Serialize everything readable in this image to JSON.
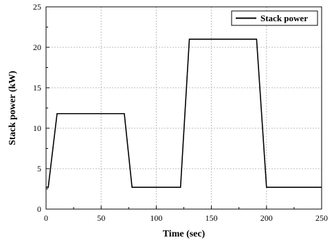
{
  "chart_data": {
    "type": "line",
    "title": "",
    "xlabel": "Time (sec)",
    "ylabel": "Stack power (kW)",
    "xlim": [
      0,
      250
    ],
    "ylim": [
      0,
      25
    ],
    "x_ticks": [
      0,
      50,
      100,
      150,
      200,
      250
    ],
    "y_ticks": [
      0,
      5,
      10,
      15,
      20,
      25
    ],
    "x_tick_labels": [
      "0",
      "50",
      "100",
      "150",
      "200",
      "250"
    ],
    "y_tick_labels": [
      "0",
      "5",
      "10",
      "15",
      "20",
      "25"
    ],
    "grid": true,
    "legend_position": "top-right",
    "series": [
      {
        "name": "Stack power",
        "color": "#000000",
        "x": [
          0,
          2,
          10,
          71,
          78,
          122,
          130,
          191,
          200,
          250
        ],
        "y": [
          2.7,
          2.7,
          11.8,
          11.8,
          2.7,
          2.7,
          21.0,
          21.0,
          2.7,
          2.7
        ]
      }
    ]
  }
}
